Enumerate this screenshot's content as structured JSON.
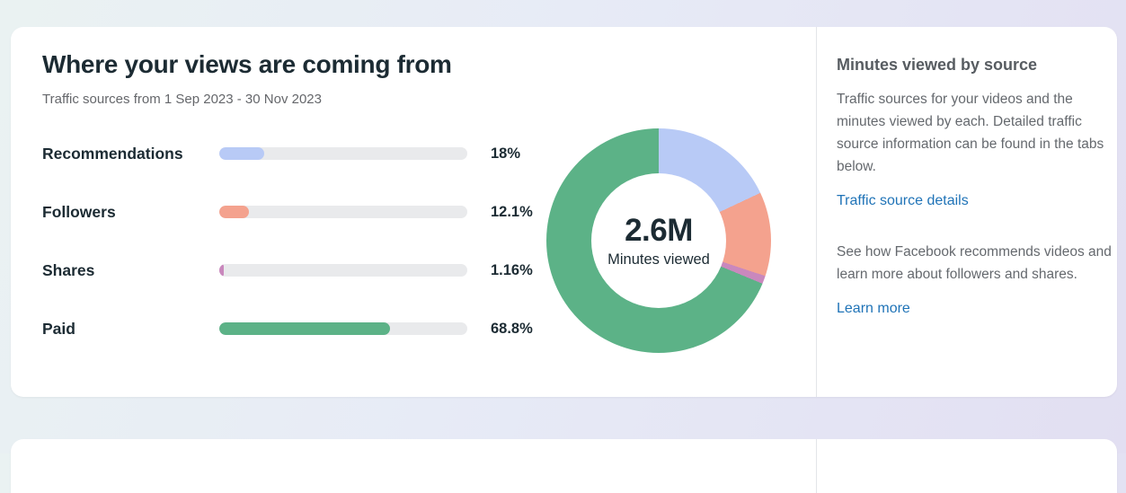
{
  "chart_data": {
    "type": "pie",
    "donut": true,
    "title": "Where your views are coming from",
    "subtitle": "Traffic sources from 1 Sep 2023 - 30 Nov 2023",
    "center_value": "2.6M",
    "center_label": "Minutes viewed",
    "categories": [
      "Recommendations",
      "Followers",
      "Shares",
      "Paid"
    ],
    "values": [
      18,
      12.1,
      1.16,
      68.8
    ],
    "value_labels": [
      "18%",
      "12.1%",
      "1.16%",
      "68.8%"
    ],
    "colors": [
      "#b8caf6",
      "#f4a28e",
      "#c988bd",
      "#5cb287"
    ],
    "track_color": "#e9eaec",
    "legend_position": "left-bars-with-percentages",
    "slice_start": "12-o-clock-clockwise"
  },
  "sidebar": {
    "heading": "Minutes viewed by source",
    "paragraph1": "Traffic sources for your videos and the minutes viewed by each. Detailed traffic source information can be found in the tabs below.",
    "link1": "Traffic source details",
    "paragraph2": "See how Facebook recommends videos and learn more about followers and shares.",
    "link2": "Learn more",
    "link_color": "#1f73b7"
  }
}
